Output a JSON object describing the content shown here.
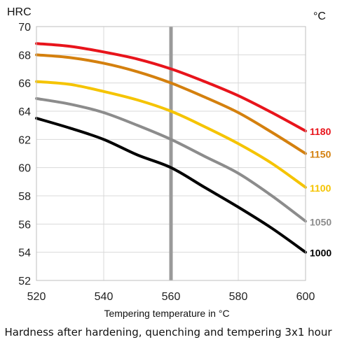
{
  "chart_data": {
    "type": "line",
    "ylabel": "HRC",
    "series_unit_label": "°C",
    "xlabel": "Tempering temperature in °C",
    "caption": "Hardness after hardening, quenching and tempering  3x1 hour",
    "xlim": [
      520,
      600
    ],
    "ylim": [
      52,
      70
    ],
    "xticks": [
      520,
      540,
      560,
      580,
      600
    ],
    "yticks": [
      52,
      54,
      56,
      58,
      60,
      62,
      64,
      66,
      68,
      70
    ],
    "grid": true,
    "marker_line_x": 560,
    "series": [
      {
        "name": "1180",
        "color": "#e8141b",
        "x": [
          520,
          530,
          540,
          550,
          560,
          570,
          580,
          590,
          600
        ],
        "y": [
          68.8,
          68.6,
          68.2,
          67.7,
          67.0,
          66.1,
          65.1,
          63.9,
          62.6
        ]
      },
      {
        "name": "1150",
        "color": "#d4800e",
        "x": [
          520,
          530,
          540,
          550,
          560,
          570,
          580,
          590,
          600
        ],
        "y": [
          68.0,
          67.8,
          67.4,
          66.8,
          66.0,
          65.0,
          63.9,
          62.5,
          61.0
        ]
      },
      {
        "name": "1100",
        "color": "#f5c400",
        "x": [
          520,
          530,
          540,
          550,
          560,
          570,
          580,
          590,
          600
        ],
        "y": [
          66.1,
          65.9,
          65.4,
          64.8,
          64.0,
          62.9,
          61.7,
          60.3,
          58.6
        ]
      },
      {
        "name": "1050",
        "color": "#8c8c8c",
        "x": [
          520,
          530,
          540,
          550,
          560,
          570,
          580,
          590,
          600
        ],
        "y": [
          64.9,
          64.5,
          63.9,
          63.0,
          62.0,
          60.8,
          59.6,
          58.0,
          56.2
        ]
      },
      {
        "name": "1000",
        "color": "#000000",
        "x": [
          520,
          530,
          540,
          550,
          560,
          570,
          580,
          590,
          600
        ],
        "y": [
          63.5,
          62.8,
          62.0,
          60.9,
          60.0,
          58.6,
          57.2,
          55.7,
          54.0
        ]
      }
    ]
  }
}
